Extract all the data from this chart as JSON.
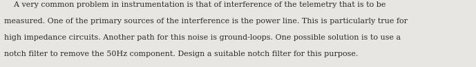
{
  "font_size": 8.0,
  "font_family": "serif",
  "text_color": "#2a2a2a",
  "background_color": "#e8e6e3",
  "line1": "    A very common problem in instrumentation is that of interference of the telemetry that is to be",
  "line2": "measured. One of the primary sources of the interference is the power line. This is particularly true for",
  "line3": "high impedance circuits. Another path for this noise is ground-loops. One possible solution is to use a",
  "line4": "notch filter to remove the 50Hz component. Design a suitable notch filter for this purpose."
}
